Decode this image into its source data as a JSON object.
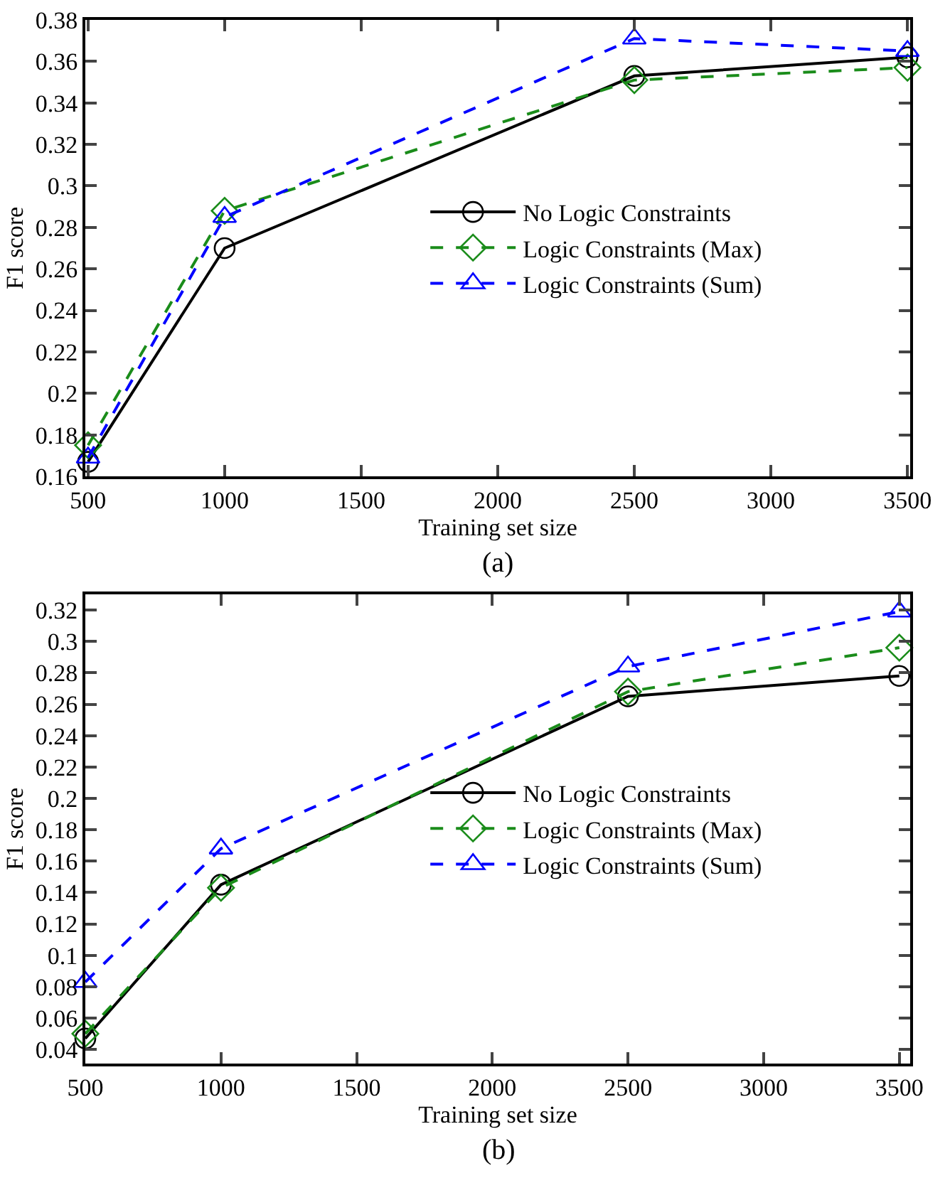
{
  "chart_data": [
    {
      "type": "line",
      "xlabel": "Training set size",
      "ylabel": "F1 score",
      "annotations": [
        "(a)"
      ],
      "x": [
        500,
        1000,
        2500,
        3500
      ],
      "xlim": [
        490,
        3510
      ],
      "xticks": [
        500,
        1000,
        1500,
        2000,
        2500,
        3000,
        3500
      ],
      "ylim": [
        0.16,
        0.38
      ],
      "yticks": [
        0.16,
        0.18,
        0.2,
        0.22,
        0.24,
        0.26,
        0.28,
        0.3,
        0.32,
        0.34,
        0.36,
        0.38
      ],
      "legend": "right",
      "series": [
        {
          "name": "No Logic Constraints",
          "color": "#000000",
          "marker": "circle",
          "line_style": "solid",
          "values": [
            0.167,
            0.27,
            0.353,
            0.362
          ]
        },
        {
          "name": "Logic Constraints (Max)",
          "color": "#1a8c1a",
          "marker": "diamond",
          "line_style": "dashed",
          "values": [
            0.175,
            0.288,
            0.351,
            0.357
          ]
        },
        {
          "name": "Logic Constraints (Sum)",
          "color": "#0000ff",
          "marker": "triangle",
          "line_style": "dashed",
          "values": [
            0.169,
            0.285,
            0.371,
            0.365
          ]
        }
      ]
    },
    {
      "type": "line",
      "xlabel": "Training set size",
      "ylabel": "F1 score",
      "annotations": [
        "(b)"
      ],
      "x": [
        500,
        1000,
        2500,
        3500
      ],
      "xlim": [
        500,
        3540
      ],
      "xticks": [
        500,
        1000,
        1500,
        2000,
        2500,
        3000,
        3500
      ],
      "ylim": [
        0.031,
        0.33
      ],
      "yticks": [
        0.04,
        0.06,
        0.08,
        0.1,
        0.12,
        0.14,
        0.16,
        0.18,
        0.2,
        0.22,
        0.24,
        0.26,
        0.28,
        0.3,
        0.32
      ],
      "legend": "right",
      "series": [
        {
          "name": "No Logic Constraints",
          "color": "#000000",
          "marker": "circle",
          "line_style": "solid",
          "values": [
            0.047,
            0.145,
            0.265,
            0.278
          ]
        },
        {
          "name": "Logic Constraints (Max)",
          "color": "#1a8c1a",
          "marker": "diamond",
          "line_style": "dashed",
          "values": [
            0.05,
            0.143,
            0.268,
            0.296
          ]
        },
        {
          "name": "Logic Constraints (Sum)",
          "color": "#0000ff",
          "marker": "triangle",
          "line_style": "dashed",
          "values": [
            0.083,
            0.168,
            0.284,
            0.319
          ]
        }
      ]
    }
  ]
}
